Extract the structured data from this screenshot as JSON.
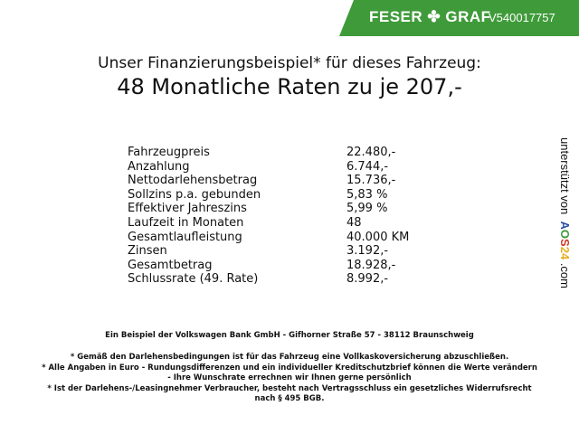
{
  "header": {
    "brand": "FESER ✤ GRAF",
    "code": "V540017757",
    "brand_color": "#3f9b3a"
  },
  "title": {
    "line1": "Unser Finanzierungsbeispiel* für dieses Fahrzeug:",
    "line2": "48 Monatliche Raten zu je 207,-"
  },
  "rows": [
    {
      "label": "Fahrzeugpreis",
      "value": "22.480,-"
    },
    {
      "label": "Anzahlung",
      "value": "6.744,-"
    },
    {
      "label": "Nettodarlehensbetrag",
      "value": "15.736,-"
    },
    {
      "label": "Sollzins p.a. gebunden",
      "value": "5,83 %"
    },
    {
      "label": "Effektiver Jahreszins",
      "value": "5,99 %"
    },
    {
      "label": "Laufzeit in Monaten",
      "value": "48"
    },
    {
      "label": "Gesamtlaufleistung",
      "value": "40.000 KM"
    },
    {
      "label": "Zinsen",
      "value": "3.192,-"
    },
    {
      "label": "Gesamtbetrag",
      "value": "18.928,-"
    },
    {
      "label": "Schlussrate (49. Rate)",
      "value": "8.992,-"
    }
  ],
  "side": {
    "text": "unterstützt von",
    "logo": "AOS24",
    "suffix": ".com"
  },
  "footer": {
    "bank": "Ein Beispiel der Volkswagen Bank GmbH - Gifhorner Straße 57 - 38112 Braunschweig",
    "note1": "* Gemäß den Darlehensbedingungen ist für das Fahrzeug eine Vollkaskoversicherung abzuschließen.",
    "note2a": "* Alle Angaben in Euro - Rundungsdifferenzen und ein individueller Kreditschutzbrief können die Werte verändern",
    "note2b": "- Ihre Wunschrate errechnen wir Ihnen gerne persönlich",
    "note3a": "* Ist der Darlehens-/Leasingnehmer Verbraucher, besteht nach Vertragsschluss ein gesetzliches Widerrufsrecht",
    "note3b": "nach § 495 BGB."
  }
}
